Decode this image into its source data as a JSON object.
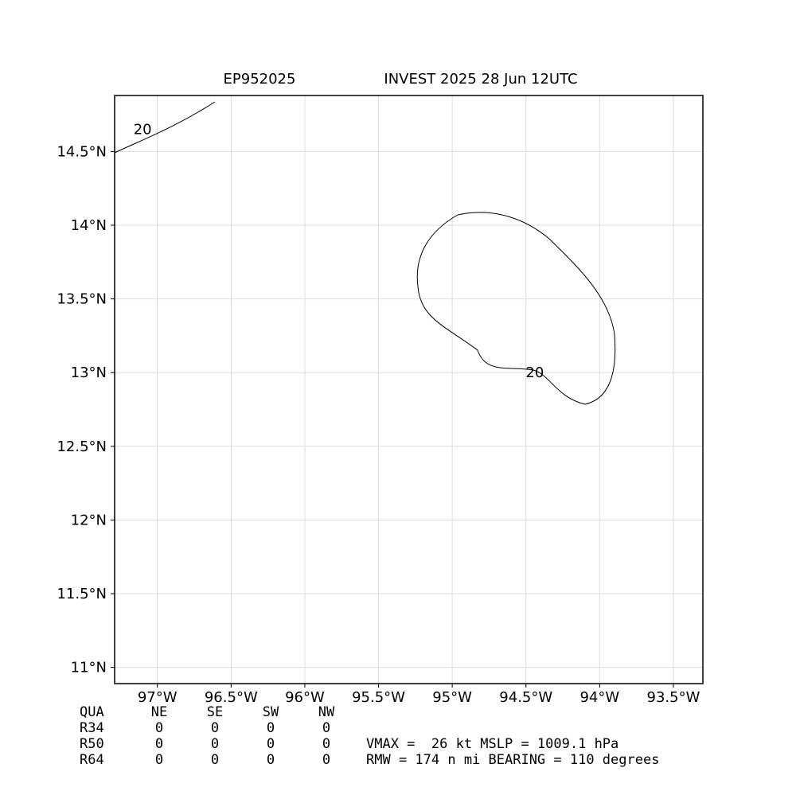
{
  "chart_data": {
    "type": "map",
    "title_left": "EP952025",
    "title_right": "INVEST 2025 28 Jun 12UTC",
    "xlim": [
      -97.29,
      -93.3
    ],
    "ylim": [
      10.89,
      14.88
    ],
    "xticks": [
      {
        "value": -97,
        "label": "97°W"
      },
      {
        "value": -96.5,
        "label": "96.5°W"
      },
      {
        "value": -96,
        "label": "96°W"
      },
      {
        "value": -95.5,
        "label": "95.5°W"
      },
      {
        "value": -95,
        "label": "95°W"
      },
      {
        "value": -94.5,
        "label": "94.5°W"
      },
      {
        "value": -94,
        "label": "94°W"
      },
      {
        "value": -93.5,
        "label": "93.5°W"
      }
    ],
    "yticks": [
      {
        "value": 11,
        "label": "11°N"
      },
      {
        "value": 11.5,
        "label": "11.5°N"
      },
      {
        "value": 12,
        "label": "12°N"
      },
      {
        "value": 12.5,
        "label": "12.5°N"
      },
      {
        "value": 13,
        "label": "13°N"
      },
      {
        "value": 13.5,
        "label": "13.5°N"
      },
      {
        "value": 14,
        "label": "14°N"
      },
      {
        "value": 14.5,
        "label": "14.5°N"
      }
    ],
    "grid": true,
    "contour_labels": [
      {
        "text": "20",
        "x": -94.44,
        "y": 13.0
      },
      {
        "text": "20",
        "x": -97.1,
        "y": 14.65
      }
    ]
  },
  "table": {
    "header": [
      "QUA",
      "NE",
      "SE",
      "SW",
      "NW"
    ],
    "rows": [
      [
        "R34",
        "0",
        "0",
        "0",
        "0"
      ],
      [
        "R50",
        "0",
        "0",
        "0",
        "0"
      ],
      [
        "R64",
        "0",
        "0",
        "0",
        "0"
      ]
    ]
  },
  "summary": [
    "VMAX =  26 kt MSLP = 1009.1 hPa",
    "RMW = 174 n mi BEARING = 110 degrees"
  ]
}
